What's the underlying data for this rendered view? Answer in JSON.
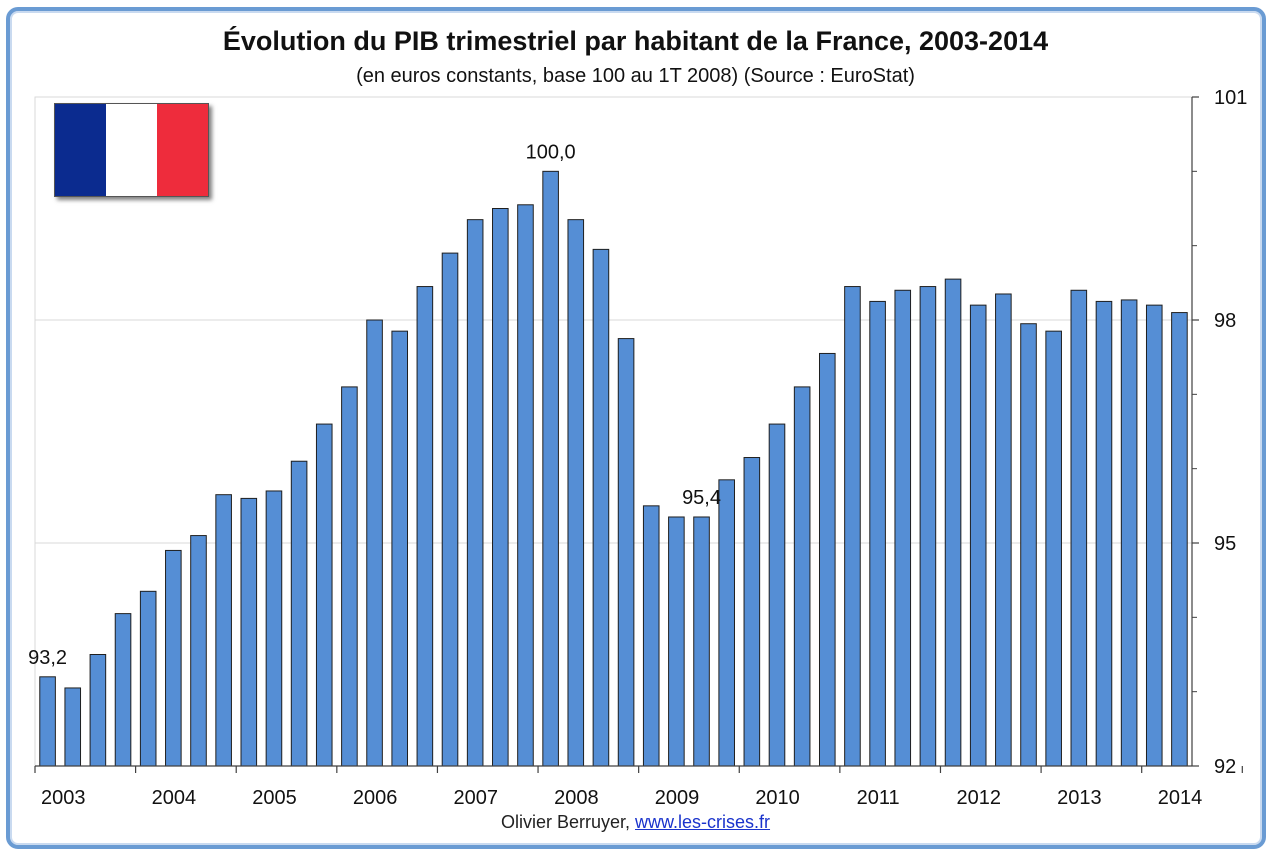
{
  "title": "Évolution du PIB trimestriel par habitant de la France, 2003-2014",
  "subtitle": "(en euros constants, base 100 au 1T 2008) (Source : EuroStat)",
  "credit": {
    "author": "Olivier Berruyer,",
    "link": "www.les-crises.fr"
  },
  "flag": {
    "colors": [
      "#0b2b8f",
      "#ffffff",
      "#ee2c3c"
    ]
  },
  "colors": {
    "bar": "#558ed5",
    "bar_stroke": "#1f1f1f",
    "grid": "#d9d9d9",
    "frame": "#6a9bd3"
  },
  "chart_data": {
    "type": "bar",
    "ylim": [
      92,
      101
    ],
    "y_major_ticks": [
      92,
      95,
      98,
      101
    ],
    "y_minor_ticks": [
      93,
      94,
      96,
      97,
      99,
      100
    ],
    "y_tick_labels": [
      "92",
      "95",
      "98",
      "101"
    ],
    "grid": true,
    "x_tick_labels": [
      "2003",
      "2004",
      "2005",
      "2006",
      "2007",
      "2008",
      "2009",
      "2010",
      "2011",
      "2012",
      "2013",
      "2014"
    ],
    "values": [
      93.2,
      93.05,
      93.5,
      94.05,
      94.35,
      94.9,
      95.1,
      95.65,
      95.6,
      95.7,
      96.1,
      96.6,
      97.1,
      98.0,
      97.85,
      98.45,
      98.9,
      99.35,
      99.5,
      99.55,
      100.0,
      99.35,
      98.95,
      97.75,
      95.5,
      95.35,
      95.35,
      95.85,
      96.15,
      96.6,
      97.1,
      97.55,
      98.45,
      98.25,
      98.4,
      98.45,
      98.55,
      98.2,
      98.35,
      97.95,
      97.85,
      98.4,
      98.25,
      98.27,
      98.2,
      98.1
    ],
    "data_labels": [
      {
        "index": 0,
        "text": "93,2"
      },
      {
        "index": 20,
        "text": "100,0"
      },
      {
        "index": 26,
        "text": "95,4"
      }
    ]
  }
}
